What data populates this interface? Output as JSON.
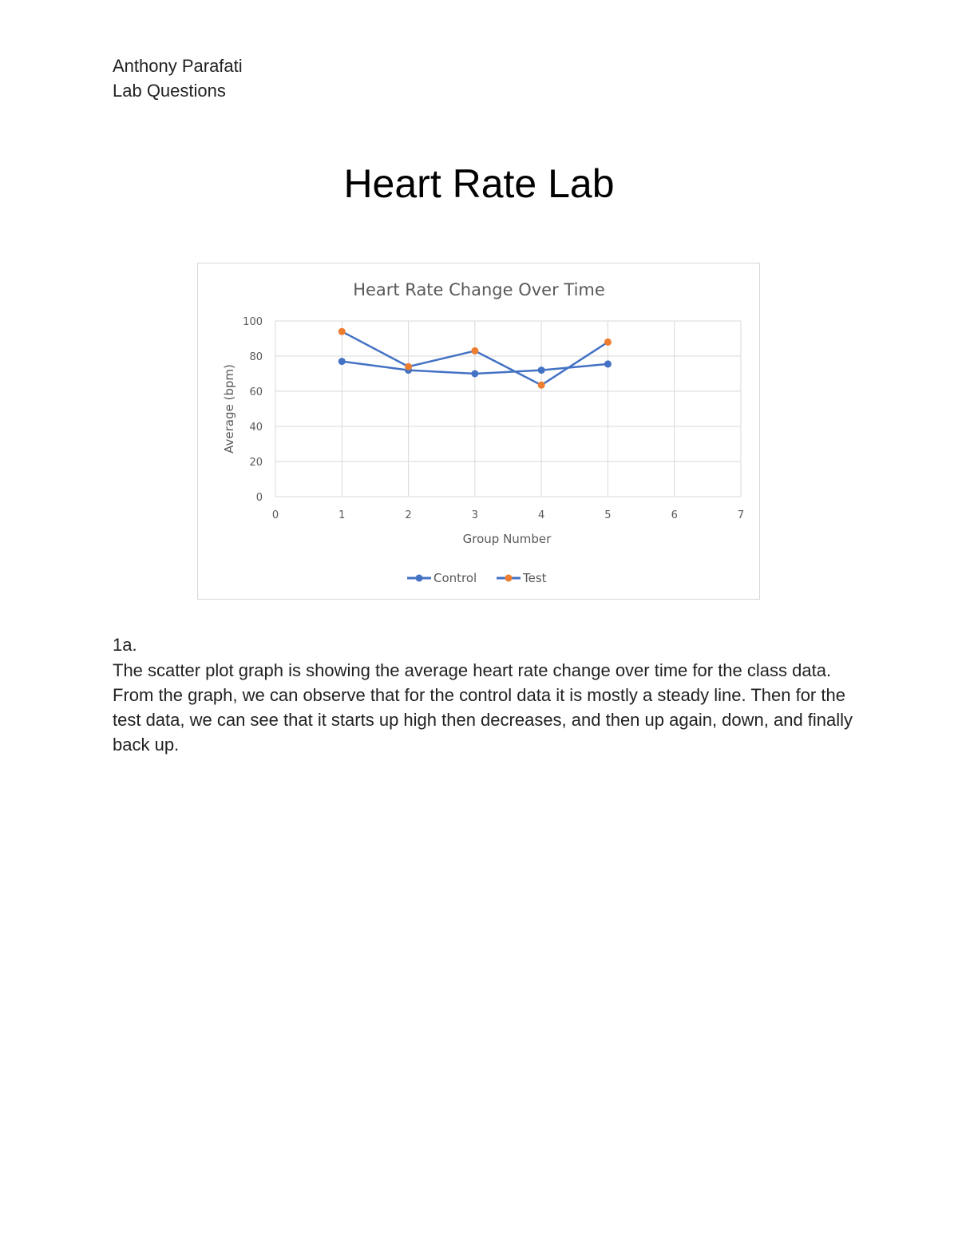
{
  "document": {
    "author": "Anthony Parafati",
    "subtitle": "Lab Questions",
    "title": "Heart Rate Lab",
    "question_label": "1a.",
    "answer": "The scatter plot graph is showing the average heart rate change over time for the class data. From the graph, we can observe that for the control data it is mostly a steady line. Then for the test data, we can see that it starts up high then decreases, and then up again, down, and finally back up."
  },
  "chart_data": {
    "type": "scatter",
    "title": "Heart Rate Change Over Time",
    "xlabel": "Group Number",
    "ylabel": "Average (bpm)",
    "xlim": [
      0,
      7
    ],
    "ylim": [
      0,
      100
    ],
    "x_ticks": [
      0,
      1,
      2,
      3,
      4,
      5,
      6,
      7
    ],
    "y_ticks": [
      0,
      20,
      40,
      60,
      80,
      100
    ],
    "grid": true,
    "legend_position": "bottom",
    "series": [
      {
        "name": "Control",
        "color": "#4472C4",
        "x": [
          1,
          2,
          3,
          4,
          5
        ],
        "y": [
          77,
          72,
          70,
          72,
          75.5
        ]
      },
      {
        "name": "Test",
        "color": "#ED7D31",
        "line_color": "#4472C4",
        "x": [
          1,
          2,
          3,
          4,
          5
        ],
        "y": [
          94,
          74,
          83,
          63.5,
          88
        ]
      }
    ]
  }
}
